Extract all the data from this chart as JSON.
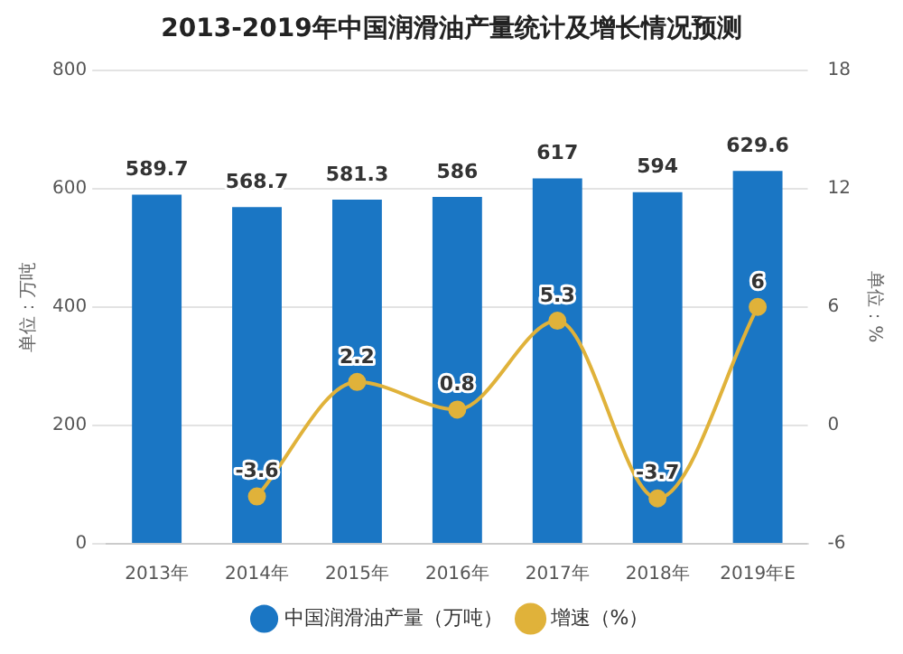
{
  "chart_data": {
    "type": "bar",
    "title": "2013-2019年中国润滑油产量统计及增长情况预测",
    "ylabel": "单位：万吨",
    "y2label": "单位：%",
    "categories": [
      "2013年",
      "2014年",
      "2015年",
      "2016年",
      "2017年",
      "2018年",
      "2019年E"
    ],
    "series": [
      {
        "name": "中国润滑油产量（万吨）",
        "color": "#1a76c4",
        "values": [
          589.7,
          568.7,
          581.3,
          586,
          617,
          594,
          629.6
        ]
      },
      {
        "name": "增速（%）",
        "type": "line",
        "axis": "y2",
        "color": "#e0b23a",
        "values": [
          null,
          -3.6,
          2.2,
          0.8,
          5.3,
          -3.7,
          6
        ]
      }
    ],
    "ylim": [
      0,
      800
    ],
    "yticks": [
      0,
      200,
      400,
      600,
      800
    ],
    "y2lim": [
      -6,
      18
    ],
    "y2ticks": [
      -6,
      0,
      6,
      12,
      18
    ],
    "grid": "y",
    "legend": "bottom",
    "marker": "circle",
    "data_labels": true
  }
}
